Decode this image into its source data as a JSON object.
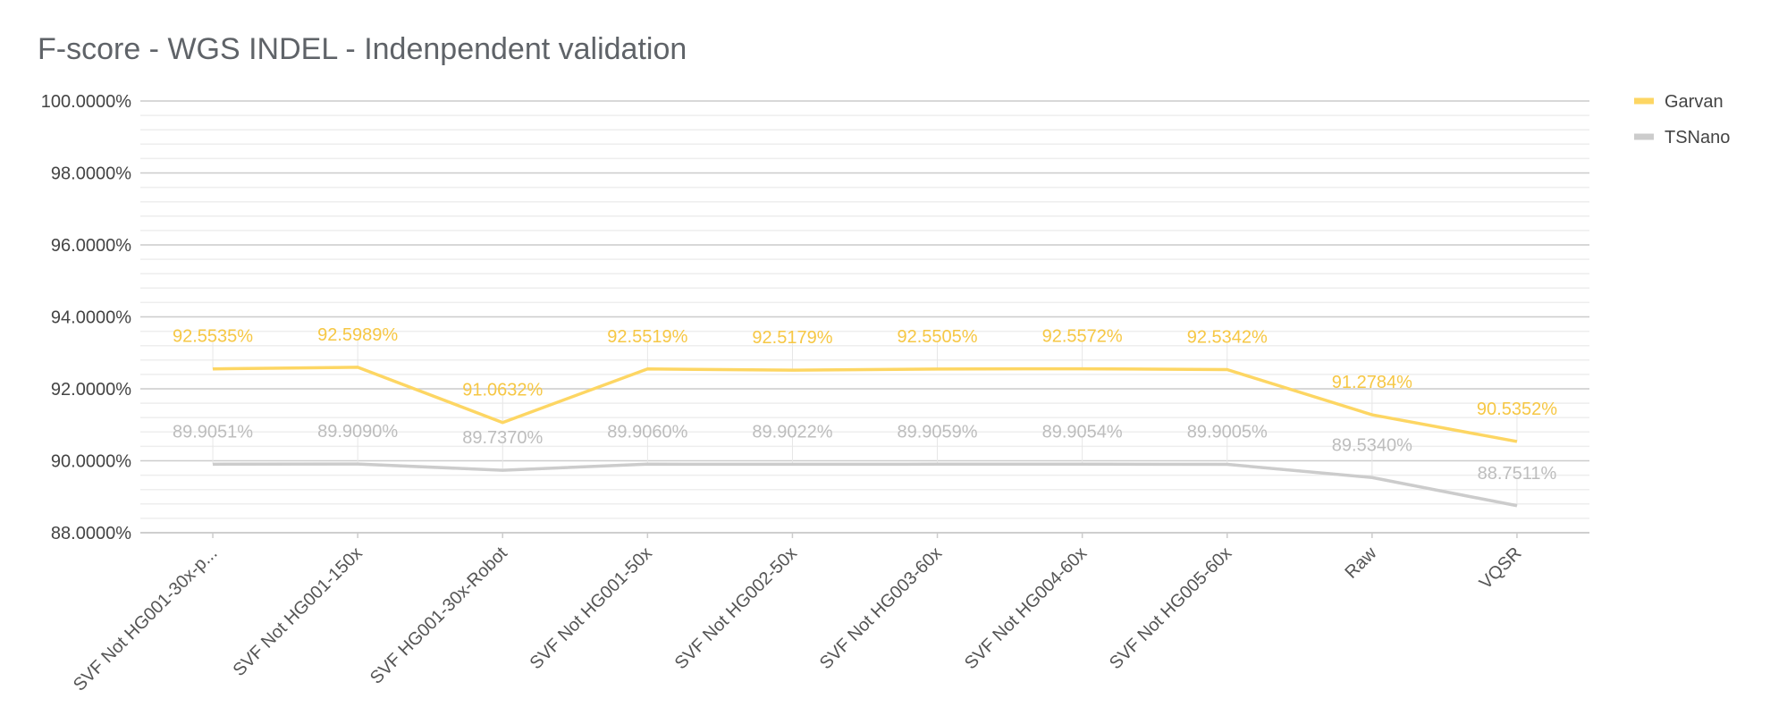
{
  "chart_data": {
    "type": "line",
    "title": "F-score - WGS INDEL - Indenpendent validation",
    "xlabel": "",
    "ylabel": "",
    "categories": [
      "SVF Not HG001-30x-p...",
      "SVF Not HG001-150x",
      "SVF HG001-30x-Robot",
      "SVF Not HG001-50x",
      "SVF Not HG002-50x",
      "SVF Not HG003-60x",
      "SVF Not HG004-60x",
      "SVF Not HG005-60x",
      "Raw",
      "VQSR"
    ],
    "series": [
      {
        "name": "Garvan",
        "color": "#fdd663",
        "values": [
          92.5535,
          92.5989,
          91.0632,
          92.5519,
          92.5179,
          92.5505,
          92.5572,
          92.5342,
          91.2784,
          90.5352
        ],
        "labels": [
          "92.5535%",
          "92.5989%",
          "91.0632%",
          "92.5519%",
          "92.5179%",
          "92.5505%",
          "92.5572%",
          "92.5342%",
          "91.2784%",
          "90.5352%"
        ]
      },
      {
        "name": "TSNano",
        "color": "#cccccc",
        "values": [
          89.9051,
          89.909,
          89.737,
          89.906,
          89.9022,
          89.9059,
          89.9054,
          89.9005,
          89.534,
          88.7511
        ],
        "labels": [
          "89.9051%",
          "89.9090%",
          "89.7370%",
          "89.9060%",
          "89.9022%",
          "89.9059%",
          "89.9054%",
          "89.9005%",
          "89.5340%",
          "88.7511%"
        ]
      }
    ],
    "ylim": [
      88,
      100
    ],
    "yticks": [
      {
        "value": 100,
        "label": "100.0000%"
      },
      {
        "value": 98,
        "label": "98.0000%"
      },
      {
        "value": 96,
        "label": "96.0000%"
      },
      {
        "value": 94,
        "label": "94.0000%"
      },
      {
        "value": 92,
        "label": "92.0000%"
      },
      {
        "value": 90,
        "label": "90.0000%"
      },
      {
        "value": 88,
        "label": "88.0000%"
      }
    ],
    "grid": true,
    "legend": "right"
  }
}
